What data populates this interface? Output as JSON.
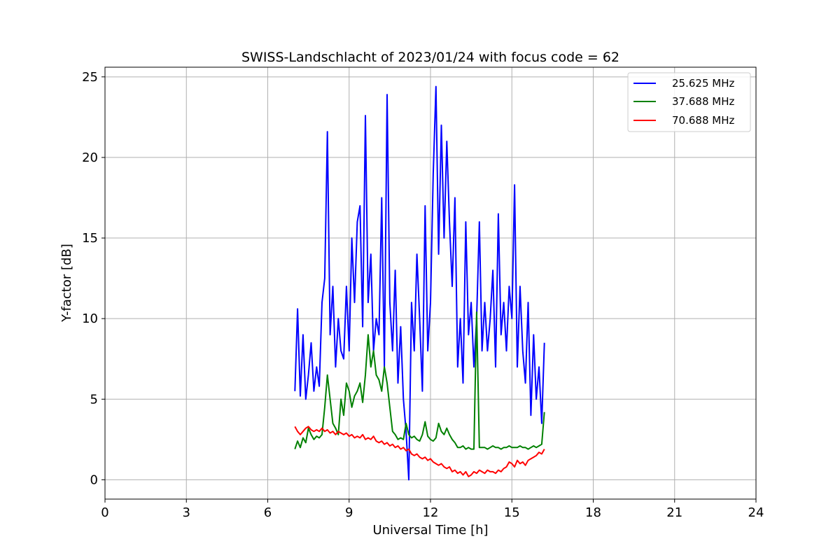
{
  "chart_data": {
    "type": "line",
    "title": "SWISS-Landschlacht of 2023/01/24 with focus code = 62",
    "xlabel": "Universal Time [h]",
    "ylabel": "Y-factor [dB]",
    "xlim": [
      0,
      24
    ],
    "ylim": [
      -1.2,
      25.6
    ],
    "xticks": [
      0,
      3,
      6,
      9,
      12,
      15,
      18,
      21,
      24
    ],
    "yticks": [
      0,
      5,
      10,
      15,
      20,
      25
    ],
    "grid": true,
    "legend_position": "top-right",
    "series": [
      {
        "name": "25.625 MHz",
        "color": "#0000ff",
        "x": [
          7.0,
          7.1,
          7.2,
          7.3,
          7.4,
          7.5,
          7.6,
          7.7,
          7.8,
          7.9,
          8.0,
          8.1,
          8.2,
          8.3,
          8.4,
          8.5,
          8.6,
          8.7,
          8.8,
          8.9,
          9.0,
          9.1,
          9.2,
          9.3,
          9.4,
          9.5,
          9.6,
          9.7,
          9.8,
          9.9,
          10.0,
          10.1,
          10.2,
          10.3,
          10.4,
          10.5,
          10.6,
          10.7,
          10.8,
          10.9,
          11.0,
          11.1,
          11.2,
          11.3,
          11.4,
          11.5,
          11.6,
          11.7,
          11.8,
          11.9,
          12.0,
          12.1,
          12.2,
          12.3,
          12.4,
          12.5,
          12.6,
          12.7,
          12.8,
          12.9,
          13.0,
          13.1,
          13.2,
          13.3,
          13.4,
          13.5,
          13.6,
          13.7,
          13.8,
          13.9,
          14.0,
          14.1,
          14.2,
          14.3,
          14.4,
          14.5,
          14.6,
          14.7,
          14.8,
          14.9,
          15.0,
          15.1,
          15.2,
          15.3,
          15.4,
          15.5,
          15.6,
          15.7,
          15.8,
          15.9,
          16.0,
          16.1,
          16.2
        ],
        "y": [
          5.5,
          10.6,
          5.2,
          9.0,
          5.0,
          6.5,
          8.5,
          5.5,
          7.0,
          5.8,
          11.0,
          12.5,
          21.6,
          9.0,
          12.0,
          7.0,
          10.0,
          8.0,
          7.5,
          12.0,
          8.0,
          15.0,
          11.0,
          16.0,
          17.0,
          9.5,
          22.6,
          11.0,
          14.0,
          8.0,
          10.0,
          9.0,
          17.5,
          7.0,
          23.9,
          11.0,
          8.0,
          13.0,
          6.0,
          9.5,
          5.0,
          3.0,
          0.0,
          11.0,
          8.0,
          14.0,
          10.0,
          5.5,
          17.0,
          8.0,
          11.0,
          19.0,
          24.4,
          14.0,
          22.0,
          15.0,
          21.0,
          16.0,
          12.0,
          17.5,
          7.0,
          10.0,
          6.0,
          16.0,
          9.0,
          11.0,
          7.0,
          10.0,
          16.0,
          8.0,
          11.0,
          8.0,
          10.0,
          13.0,
          7.0,
          16.5,
          9.0,
          11.0,
          8.0,
          12.0,
          10.0,
          18.3,
          7.0,
          12.0,
          8.0,
          6.0,
          11.0,
          4.0,
          9.0,
          5.0,
          7.0,
          3.5,
          8.5
        ]
      },
      {
        "name": "37.688 MHz",
        "color": "#008000",
        "x": [
          7.0,
          7.1,
          7.2,
          7.3,
          7.4,
          7.5,
          7.6,
          7.7,
          7.8,
          7.9,
          8.0,
          8.1,
          8.2,
          8.3,
          8.4,
          8.5,
          8.6,
          8.7,
          8.8,
          8.9,
          9.0,
          9.1,
          9.2,
          9.3,
          9.4,
          9.5,
          9.6,
          9.7,
          9.8,
          9.9,
          10.0,
          10.1,
          10.2,
          10.3,
          10.4,
          10.5,
          10.6,
          10.7,
          10.8,
          10.9,
          11.0,
          11.1,
          11.2,
          11.3,
          11.4,
          11.5,
          11.6,
          11.7,
          11.8,
          11.9,
          12.0,
          12.1,
          12.2,
          12.3,
          12.4,
          12.5,
          12.6,
          12.7,
          12.8,
          12.9,
          13.0,
          13.1,
          13.2,
          13.3,
          13.4,
          13.5,
          13.6,
          13.7,
          13.8,
          13.9,
          14.0,
          14.1,
          14.2,
          14.3,
          14.4,
          14.5,
          14.6,
          14.7,
          14.8,
          14.9,
          15.0,
          15.1,
          15.2,
          15.3,
          15.4,
          15.5,
          15.6,
          15.7,
          15.8,
          15.9,
          16.0,
          16.1,
          16.2
        ],
        "y": [
          1.9,
          2.4,
          2.0,
          2.6,
          2.3,
          3.2,
          2.8,
          2.5,
          2.7,
          2.6,
          2.8,
          4.5,
          6.5,
          5.0,
          3.5,
          3.2,
          2.8,
          5.0,
          4.0,
          6.0,
          5.5,
          4.5,
          5.2,
          5.5,
          6.0,
          4.8,
          6.5,
          9.0,
          7.0,
          8.0,
          6.5,
          6.2,
          5.5,
          7.0,
          6.0,
          4.5,
          3.0,
          2.8,
          2.5,
          2.6,
          2.5,
          3.5,
          2.8,
          2.6,
          2.7,
          2.5,
          2.4,
          2.8,
          3.6,
          2.7,
          2.5,
          2.4,
          2.6,
          3.5,
          3.0,
          2.8,
          3.2,
          2.8,
          2.5,
          2.3,
          2.0,
          2.0,
          2.1,
          1.9,
          2.0,
          1.9,
          1.9,
          10.4,
          2.0,
          2.0,
          2.0,
          1.9,
          2.0,
          2.1,
          2.0,
          2.0,
          1.9,
          2.0,
          2.0,
          2.1,
          2.0,
          2.0,
          2.0,
          2.1,
          2.0,
          2.0,
          1.9,
          2.0,
          2.1,
          2.0,
          2.1,
          2.2,
          4.2
        ]
      },
      {
        "name": "70.688 MHz",
        "color": "#ff0000",
        "x": [
          7.0,
          7.1,
          7.2,
          7.3,
          7.4,
          7.5,
          7.6,
          7.7,
          7.8,
          7.9,
          8.0,
          8.1,
          8.2,
          8.3,
          8.4,
          8.5,
          8.6,
          8.7,
          8.8,
          8.9,
          9.0,
          9.1,
          9.2,
          9.3,
          9.4,
          9.5,
          9.6,
          9.7,
          9.8,
          9.9,
          10.0,
          10.1,
          10.2,
          10.3,
          10.4,
          10.5,
          10.6,
          10.7,
          10.8,
          10.9,
          11.0,
          11.1,
          11.2,
          11.3,
          11.4,
          11.5,
          11.6,
          11.7,
          11.8,
          11.9,
          12.0,
          12.1,
          12.2,
          12.3,
          12.4,
          12.5,
          12.6,
          12.7,
          12.8,
          12.9,
          13.0,
          13.1,
          13.2,
          13.3,
          13.4,
          13.5,
          13.6,
          13.7,
          13.8,
          13.9,
          14.0,
          14.1,
          14.2,
          14.3,
          14.4,
          14.5,
          14.6,
          14.7,
          14.8,
          14.9,
          15.0,
          15.1,
          15.2,
          15.3,
          15.4,
          15.5,
          15.6,
          15.7,
          15.8,
          15.9,
          16.0,
          16.1,
          16.2
        ],
        "y": [
          3.3,
          3.0,
          2.8,
          3.0,
          3.2,
          3.3,
          3.1,
          3.0,
          3.1,
          3.0,
          3.2,
          3.0,
          3.1,
          2.9,
          3.0,
          2.8,
          3.0,
          2.9,
          2.8,
          2.9,
          2.7,
          2.8,
          2.6,
          2.7,
          2.6,
          2.8,
          2.5,
          2.6,
          2.5,
          2.7,
          2.4,
          2.3,
          2.4,
          2.2,
          2.3,
          2.1,
          2.2,
          2.0,
          2.1,
          1.9,
          2.0,
          1.8,
          1.9,
          1.6,
          1.5,
          1.6,
          1.4,
          1.3,
          1.4,
          1.2,
          1.3,
          1.1,
          1.0,
          0.9,
          1.0,
          0.8,
          0.7,
          0.8,
          0.5,
          0.6,
          0.4,
          0.5,
          0.3,
          0.5,
          0.2,
          0.3,
          0.5,
          0.4,
          0.6,
          0.5,
          0.4,
          0.6,
          0.5,
          0.5,
          0.4,
          0.6,
          0.5,
          0.7,
          0.8,
          1.1,
          1.0,
          0.8,
          1.2,
          1.0,
          1.1,
          0.9,
          1.2,
          1.3,
          1.4,
          1.5,
          1.7,
          1.6,
          1.9
        ]
      }
    ]
  }
}
